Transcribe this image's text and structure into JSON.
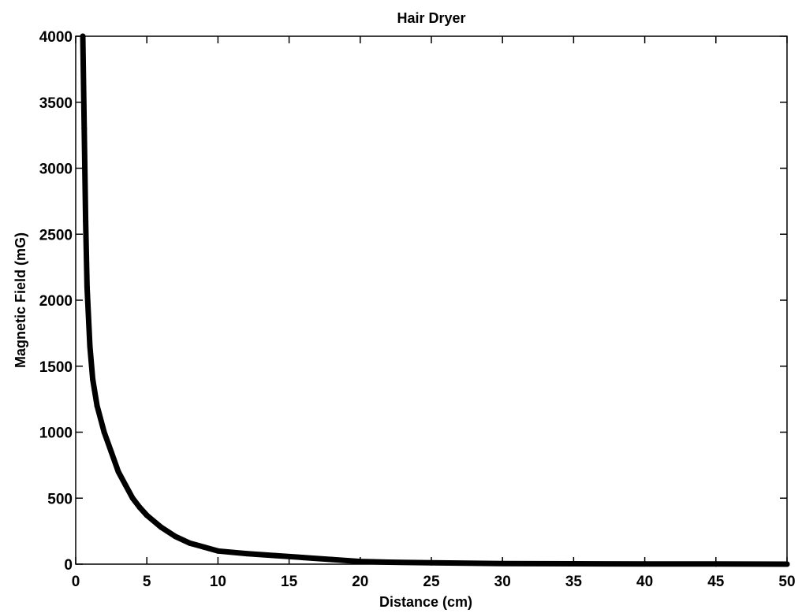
{
  "chart_data": {
    "type": "line",
    "title": "Hair Dryer",
    "xlabel": "Distance (cm)",
    "ylabel": "Magnetic Field (mG)",
    "xlim": [
      0,
      50
    ],
    "ylim": [
      0,
      4000
    ],
    "xticks": [
      0,
      5,
      10,
      15,
      20,
      25,
      30,
      35,
      40,
      45,
      50
    ],
    "yticks": [
      0,
      500,
      1000,
      1500,
      2000,
      2500,
      3000,
      3500,
      4000
    ],
    "grid": false,
    "legend": "none",
    "line_color": "#000000",
    "series": [
      {
        "x": [
          0.5,
          0.6,
          0.7,
          0.8,
          1.0,
          1.2,
          1.5,
          2,
          2.5,
          3,
          3.5,
          4,
          4.5,
          5,
          6,
          7,
          8,
          9,
          10,
          12,
          14,
          16,
          18,
          20,
          22,
          25,
          30,
          35,
          40,
          45,
          50
        ],
        "y": [
          4000,
          3300,
          2600,
          2100,
          1650,
          1400,
          1200,
          1000,
          850,
          700,
          600,
          500,
          430,
          370,
          280,
          210,
          160,
          130,
          100,
          80,
          65,
          50,
          35,
          20,
          15,
          10,
          5,
          3,
          2,
          1,
          0
        ]
      }
    ]
  }
}
